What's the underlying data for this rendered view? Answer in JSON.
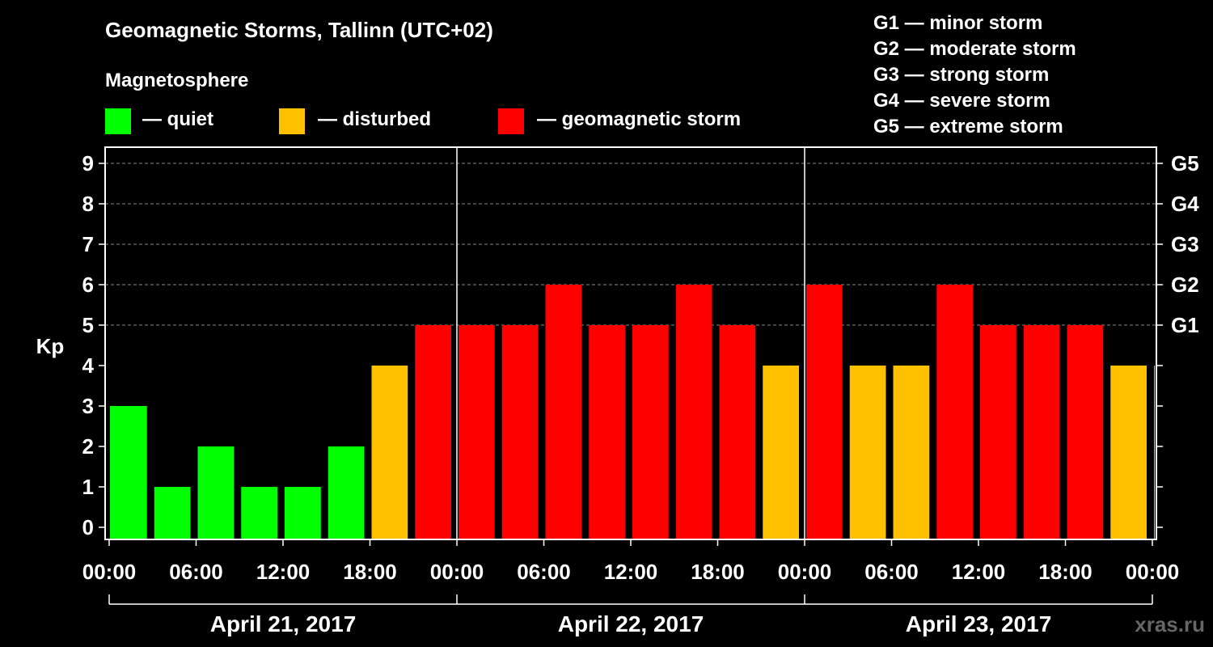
{
  "chart_data": {
    "type": "bar",
    "title": "Geomagnetic Storms, Tallinn (UTC+02)",
    "subtitle": "Magnetosphere",
    "ylabel": "Kp",
    "ylim": [
      0,
      9
    ],
    "yticks": [
      "0",
      "1",
      "2",
      "3",
      "4",
      "5",
      "6",
      "7",
      "8",
      "9"
    ],
    "storm_levels": [
      {
        "label": "G1",
        "kp": 5
      },
      {
        "label": "G2",
        "kp": 6
      },
      {
        "label": "G3",
        "kp": 7
      },
      {
        "label": "G4",
        "kp": 8
      },
      {
        "label": "G5",
        "kp": 9
      }
    ],
    "storm_legend": [
      "G1 — minor storm",
      "G2 — moderate storm",
      "G3 — strong storm",
      "G4 — severe storm",
      "G5 — extreme storm"
    ],
    "status_legend": [
      {
        "label": "— quiet",
        "color": "#00ff00"
      },
      {
        "label": "— disturbed",
        "color": "#ffc000"
      },
      {
        "label": "— geomagnetic storm",
        "color": "#ff0000"
      }
    ],
    "xtick_labels": [
      "00:00",
      "06:00",
      "12:00",
      "18:00",
      "00:00",
      "06:00",
      "12:00",
      "18:00",
      "00:00",
      "06:00",
      "12:00",
      "18:00",
      "00:00"
    ],
    "days": [
      "April 21, 2017",
      "April 22, 2017",
      "April 23, 2017"
    ],
    "hours_span": 72,
    "interval_hours": 3,
    "start_hour": 0,
    "values": [
      3,
      1,
      2,
      1,
      1,
      2,
      4,
      5,
      5,
      5,
      6,
      5,
      5,
      6,
      5,
      4,
      6,
      4,
      4,
      6,
      5,
      5,
      5,
      4,
      4
    ],
    "watermark": "xras.ru"
  }
}
